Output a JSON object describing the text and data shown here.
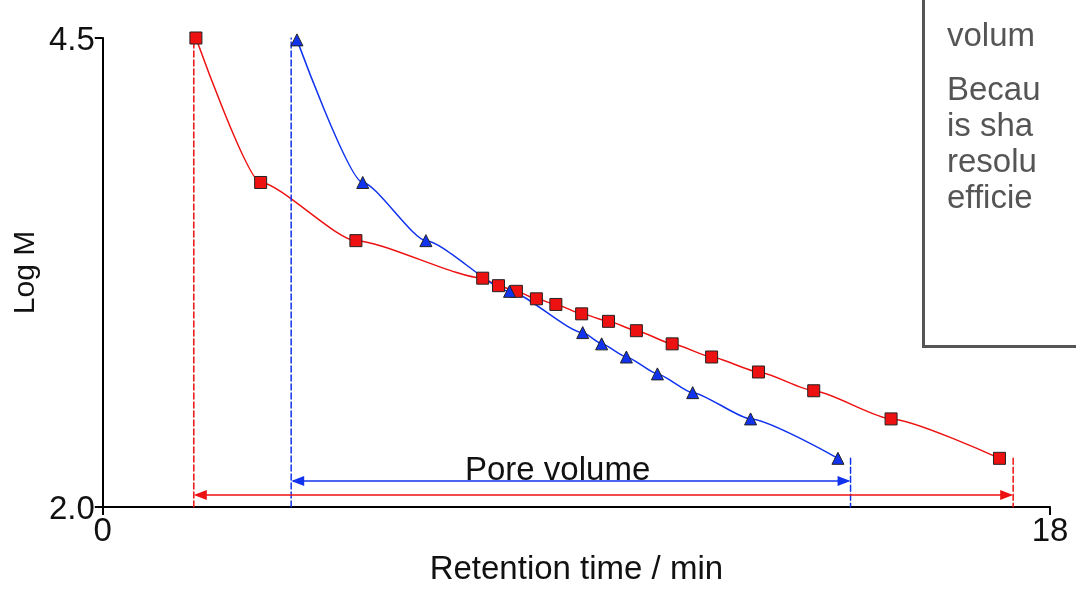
{
  "chart_data": {
    "type": "line",
    "xlabel": "Retention time / min",
    "ylabel": "Log M",
    "xlim": [
      0,
      18
    ],
    "xticks": [
      0,
      18
    ],
    "ylim": [
      2.0,
      4.5
    ],
    "yticks": [
      {
        "value": 2.0,
        "label": "2.0"
      },
      {
        "value": 4.5,
        "label": "4.5"
      }
    ],
    "grid": false,
    "series": [
      {
        "color": "#ee1111",
        "marker": "square",
        "line_style": "solid",
        "x": [
          1.77,
          3.0,
          4.81,
          7.22,
          7.52,
          7.86,
          8.24,
          8.61,
          9.1,
          9.61,
          10.14,
          10.82,
          11.57,
          12.46,
          13.51,
          14.98,
          17.04
        ],
        "values": [
          4.5,
          3.73,
          3.42,
          3.22,
          3.18,
          3.15,
          3.11,
          3.08,
          3.03,
          2.99,
          2.94,
          2.87,
          2.8,
          2.72,
          2.62,
          2.47,
          2.26
        ]
      },
      {
        "color": "#1133ee",
        "marker": "triangle",
        "line_style": "solid",
        "x": [
          3.69,
          4.94,
          6.14,
          7.73,
          9.12,
          9.48,
          9.95,
          10.54,
          11.21,
          12.31,
          13.97
        ],
        "values": [
          4.49,
          3.73,
          3.42,
          3.15,
          2.93,
          2.87,
          2.8,
          2.71,
          2.61,
          2.47,
          2.26
        ]
      },
      {
        "color": "#ee1111",
        "marker": "none",
        "line_style": "dashed",
        "x": [
          1.73,
          1.73,
          9.5,
          17.3,
          17.3
        ],
        "values": [
          2.0,
          4.5,
          null,
          2.26,
          2.0
        ]
      },
      {
        "color": "#1133ee",
        "marker": "none",
        "line_style": "dashed",
        "x": [
          3.58,
          3.58,
          9.0,
          14.21,
          14.21
        ],
        "values": [
          2.0,
          4.5,
          null,
          2.26,
          2.0
        ]
      }
    ],
    "annotations": [
      "Pore volume",
      "volum",
      "Becau",
      "is sha",
      "resolu",
      "efficie"
    ]
  }
}
